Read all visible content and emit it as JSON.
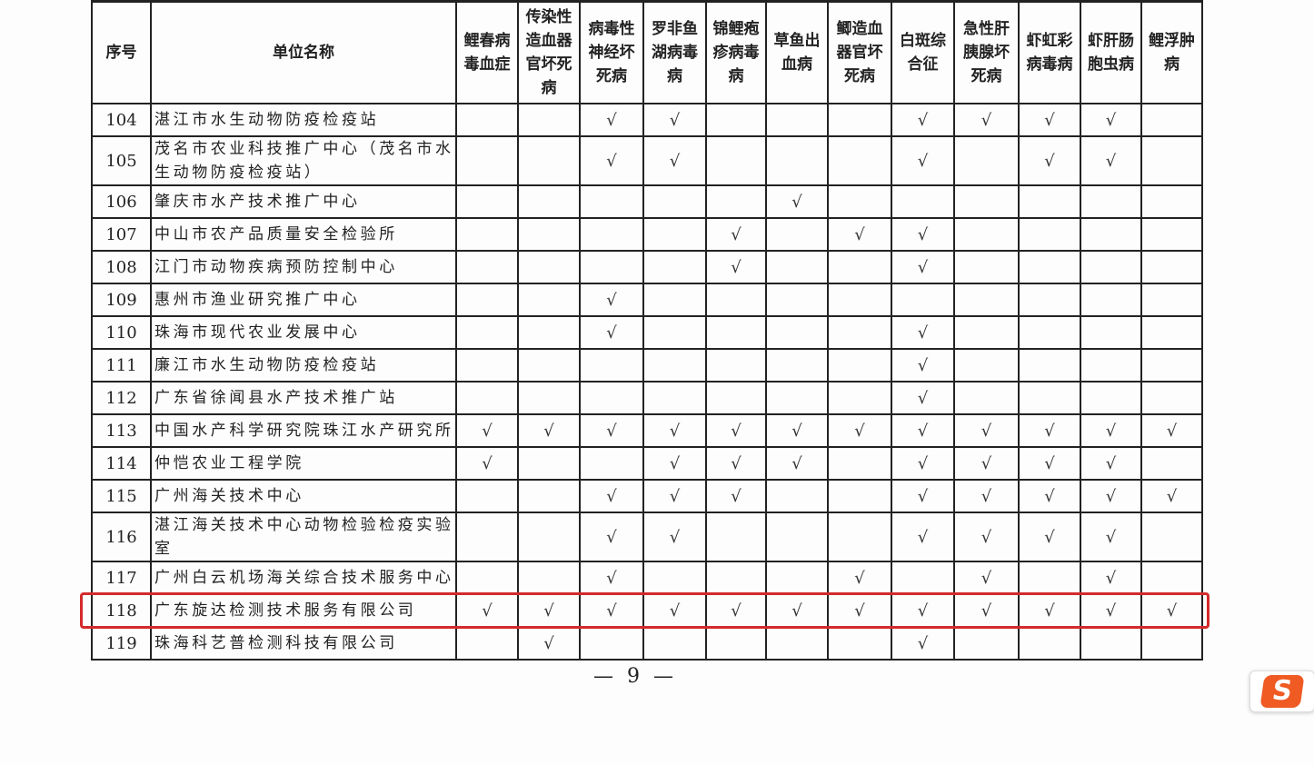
{
  "table": {
    "headers": {
      "index": "序号",
      "name": "单位名称",
      "diseases": [
        "鲤春病毒血症",
        "传染性造血器官坏死病",
        "病毒性神经坏死病",
        "罗非鱼湖病毒病",
        "锦鲤疱疹病毒病",
        "草鱼出血病",
        "鲫造血器官坏死病",
        "白斑综合征",
        "急性肝胰腺坏死病",
        "虾虹彩病毒病",
        "虾肝肠胞虫病",
        "鲤浮肿病"
      ]
    },
    "check_mark": "√",
    "rows": [
      {
        "no": "104",
        "name": "湛江市水生动物防疫检疫站",
        "checks": [
          3,
          4,
          8,
          9,
          10,
          11
        ]
      },
      {
        "no": "105",
        "name": "茂名市农业科技推广中心（茂名市水生动物防疫检疫站）",
        "checks": [
          3,
          4,
          8,
          10,
          11
        ]
      },
      {
        "no": "106",
        "name": "肇庆市水产技术推广中心",
        "checks": [
          6
        ]
      },
      {
        "no": "107",
        "name": "中山市农产品质量安全检验所",
        "checks": [
          5,
          7,
          8
        ]
      },
      {
        "no": "108",
        "name": "江门市动物疾病预防控制中心",
        "checks": [
          5,
          8
        ]
      },
      {
        "no": "109",
        "name": "惠州市渔业研究推广中心",
        "checks": [
          3
        ]
      },
      {
        "no": "110",
        "name": "珠海市现代农业发展中心",
        "checks": [
          3,
          8
        ]
      },
      {
        "no": "111",
        "name": "廉江市水生动物防疫检疫站",
        "checks": [
          8
        ]
      },
      {
        "no": "112",
        "name": "广东省徐闻县水产技术推广站",
        "checks": [
          8
        ]
      },
      {
        "no": "113",
        "name": "中国水产科学研究院珠江水产研究所",
        "checks": [
          1,
          2,
          3,
          4,
          5,
          6,
          7,
          8,
          9,
          10,
          11,
          12
        ]
      },
      {
        "no": "114",
        "name": "仲恺农业工程学院",
        "checks": [
          1,
          4,
          5,
          6,
          8,
          9,
          10,
          11
        ]
      },
      {
        "no": "115",
        "name": "广州海关技术中心",
        "checks": [
          3,
          4,
          5,
          8,
          9,
          10,
          11,
          12
        ]
      },
      {
        "no": "116",
        "name": "湛江海关技术中心动物检验检疫实验室",
        "checks": [
          3,
          4,
          8,
          9,
          10,
          11
        ]
      },
      {
        "no": "117",
        "name": "广州白云机场海关综合技术服务中心",
        "checks": [
          3,
          7,
          9,
          11
        ]
      },
      {
        "no": "118",
        "name": "广东旋达检测技术服务有限公司",
        "checks": [
          1,
          2,
          3,
          4,
          5,
          6,
          7,
          8,
          9,
          10,
          11,
          12
        ],
        "highlighted": true
      },
      {
        "no": "119",
        "name": "珠海科艺普检测科技有限公司",
        "checks": [
          2,
          8
        ]
      }
    ]
  },
  "page_number": "— 9 —",
  "highlight_color": "#d32a2a",
  "logo": {
    "text": "S",
    "icon": "sogou-input-icon"
  }
}
